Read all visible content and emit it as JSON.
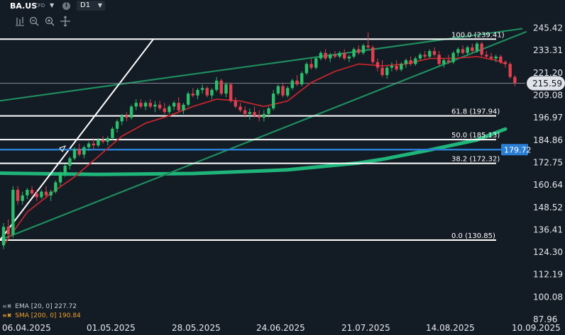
{
  "header": {
    "symbol": "BA.US",
    "symbol_suffix": "CFD",
    "symbol_dropdown_icon": "caret-down-icon",
    "info_icon_label": "i",
    "timeframe": "D1",
    "timeframe_dropdown_icon": "caret-down-icon"
  },
  "toolbar": {
    "icons": [
      "bars-settings-icon",
      "zoom-out-icon",
      "zoom-in-icon",
      "crosshair-move-icon"
    ]
  },
  "legend": {
    "ema_label": "EMA [20, 0] 227.72",
    "ema_color": "#c9d0d8",
    "sma_label": "SMA [200, 0] 190.84",
    "sma_color": "#f0a030"
  },
  "colors": {
    "background": "#131b24",
    "up_candle": "#2bbf6a",
    "down_candle": "#e04050",
    "ema_line": "#c0262c",
    "sma_line": "#1fb57a",
    "channel_lines": "#1e8c5e",
    "fib_lines": "#ffffff",
    "hline_blue": "#2a7fd4",
    "price_tag_bg": "#dfe4ea"
  },
  "chart_data": {
    "type": "candlestick",
    "y_axis": {
      "ylim": [
        87.96,
        254.8
      ],
      "ticks": [
        "245.42",
        "233.31",
        "221.20",
        "209.08",
        "196.97",
        "184.86",
        "172.75",
        "160.64",
        "148.52",
        "136.41",
        "124.30",
        "112.19",
        "100.08",
        "87.96"
      ]
    },
    "x_axis": {
      "ticks": [
        "06.04.2025",
        "01.05.2025",
        "28.05.2025",
        "24.06.2025",
        "21.07.2025",
        "14.08.2025",
        "10.09.2025"
      ]
    },
    "current_price": "215.59",
    "horizontal_line_price": "179.72",
    "fibonacci_levels": [
      {
        "label": "100.0 (239.41)",
        "value": 239.41
      },
      {
        "label": "61.8 (197.94)",
        "value": 197.94
      },
      {
        "label": "50.0 (185.13)",
        "value": 185.13
      },
      {
        "label": "38.2 (172.32)",
        "value": 172.32
      },
      {
        "label": "0.0 (130.85)",
        "value": 130.85
      }
    ],
    "candles": [
      {
        "date": "07.04",
        "o": 128,
        "h": 140,
        "l": 126,
        "c": 138
      },
      {
        "date": "08.04",
        "o": 138,
        "h": 142,
        "l": 132,
        "c": 134
      },
      {
        "date": "09.04",
        "o": 134,
        "h": 160,
        "l": 132,
        "c": 158
      },
      {
        "date": "10.04",
        "o": 158,
        "h": 160,
        "l": 150,
        "c": 152
      },
      {
        "date": "11.04",
        "o": 152,
        "h": 157,
        "l": 150,
        "c": 155
      },
      {
        "date": "14.04",
        "o": 155,
        "h": 159,
        "l": 153,
        "c": 158
      },
      {
        "date": "15.04",
        "o": 158,
        "h": 160,
        "l": 155,
        "c": 156
      },
      {
        "date": "16.04",
        "o": 156,
        "h": 158,
        "l": 152,
        "c": 154
      },
      {
        "date": "17.04",
        "o": 154,
        "h": 158,
        "l": 153,
        "c": 157
      },
      {
        "date": "18.04",
        "o": 157,
        "h": 160,
        "l": 154,
        "c": 155
      },
      {
        "date": "21.04",
        "o": 155,
        "h": 158,
        "l": 152,
        "c": 157
      },
      {
        "date": "22.04",
        "o": 157,
        "h": 163,
        "l": 156,
        "c": 162
      },
      {
        "date": "23.04",
        "o": 162,
        "h": 168,
        "l": 160,
        "c": 167
      },
      {
        "date": "24.04",
        "o": 167,
        "h": 172,
        "l": 165,
        "c": 171
      },
      {
        "date": "25.04",
        "o": 171,
        "h": 176,
        "l": 169,
        "c": 175
      },
      {
        "date": "28.04",
        "o": 175,
        "h": 181,
        "l": 174,
        "c": 180
      },
      {
        "date": "29.04",
        "o": 180,
        "h": 183,
        "l": 176,
        "c": 177
      },
      {
        "date": "30.04",
        "o": 177,
        "h": 182,
        "l": 175,
        "c": 181
      },
      {
        "date": "01.05",
        "o": 181,
        "h": 184,
        "l": 179,
        "c": 183
      },
      {
        "date": "02.05",
        "o": 183,
        "h": 186,
        "l": 180,
        "c": 182
      },
      {
        "date": "05.05",
        "o": 182,
        "h": 186,
        "l": 181,
        "c": 185
      },
      {
        "date": "06.05",
        "o": 185,
        "h": 187,
        "l": 183,
        "c": 184
      },
      {
        "date": "07.05",
        "o": 184,
        "h": 187,
        "l": 182,
        "c": 186
      },
      {
        "date": "08.05",
        "o": 186,
        "h": 192,
        "l": 185,
        "c": 191
      },
      {
        "date": "09.05",
        "o": 191,
        "h": 196,
        "l": 189,
        "c": 195
      },
      {
        "date": "12.05",
        "o": 195,
        "h": 199,
        "l": 193,
        "c": 198
      },
      {
        "date": "13.05",
        "o": 198,
        "h": 200,
        "l": 195,
        "c": 197
      },
      {
        "date": "14.05",
        "o": 197,
        "h": 204,
        "l": 196,
        "c": 203
      },
      {
        "date": "15.05",
        "o": 203,
        "h": 207,
        "l": 201,
        "c": 205
      },
      {
        "date": "16.05",
        "o": 205,
        "h": 207,
        "l": 202,
        "c": 203
      },
      {
        "date": "19.05",
        "o": 203,
        "h": 206,
        "l": 201,
        "c": 205
      },
      {
        "date": "20.05",
        "o": 205,
        "h": 207,
        "l": 202,
        "c": 203
      },
      {
        "date": "21.05",
        "o": 203,
        "h": 206,
        "l": 200,
        "c": 204
      },
      {
        "date": "22.05",
        "o": 204,
        "h": 206,
        "l": 201,
        "c": 202
      },
      {
        "date": "23.05",
        "o": 202,
        "h": 205,
        "l": 199,
        "c": 200
      },
      {
        "date": "26.05",
        "o": 200,
        "h": 204,
        "l": 199,
        "c": 203
      },
      {
        "date": "27.05",
        "o": 203,
        "h": 206,
        "l": 201,
        "c": 205
      },
      {
        "date": "28.05",
        "o": 205,
        "h": 208,
        "l": 200,
        "c": 201
      },
      {
        "date": "29.05",
        "o": 201,
        "h": 205,
        "l": 199,
        "c": 204
      },
      {
        "date": "30.05",
        "o": 204,
        "h": 211,
        "l": 203,
        "c": 210
      },
      {
        "date": "02.06",
        "o": 210,
        "h": 213,
        "l": 208,
        "c": 209
      },
      {
        "date": "03.06",
        "o": 209,
        "h": 213,
        "l": 207,
        "c": 212
      },
      {
        "date": "04.06",
        "o": 212,
        "h": 215,
        "l": 210,
        "c": 213
      },
      {
        "date": "05.06",
        "o": 213,
        "h": 214,
        "l": 208,
        "c": 209
      },
      {
        "date": "06.06",
        "o": 209,
        "h": 213,
        "l": 207,
        "c": 212
      },
      {
        "date": "09.06",
        "o": 212,
        "h": 219,
        "l": 211,
        "c": 217
      },
      {
        "date": "10.06",
        "o": 217,
        "h": 218,
        "l": 209,
        "c": 210
      },
      {
        "date": "11.06",
        "o": 210,
        "h": 216,
        "l": 208,
        "c": 215
      },
      {
        "date": "12.06",
        "o": 215,
        "h": 216,
        "l": 205,
        "c": 206
      },
      {
        "date": "13.06",
        "o": 206,
        "h": 208,
        "l": 202,
        "c": 203
      },
      {
        "date": "16.06",
        "o": 203,
        "h": 205,
        "l": 200,
        "c": 201
      },
      {
        "date": "17.06",
        "o": 201,
        "h": 203,
        "l": 197,
        "c": 199
      },
      {
        "date": "18.06",
        "o": 199,
        "h": 202,
        "l": 196,
        "c": 200
      },
      {
        "date": "19.06",
        "o": 200,
        "h": 203,
        "l": 197,
        "c": 198
      },
      {
        "date": "20.06",
        "o": 198,
        "h": 201,
        "l": 195,
        "c": 197
      },
      {
        "date": "23.06",
        "o": 197,
        "h": 201,
        "l": 195,
        "c": 199
      },
      {
        "date": "24.06",
        "o": 199,
        "h": 203,
        "l": 197,
        "c": 202
      },
      {
        "date": "25.06",
        "o": 202,
        "h": 212,
        "l": 201,
        "c": 210
      },
      {
        "date": "26.06",
        "o": 210,
        "h": 215,
        "l": 209,
        "c": 214
      },
      {
        "date": "27.06",
        "o": 214,
        "h": 216,
        "l": 208,
        "c": 209
      },
      {
        "date": "30.06",
        "o": 209,
        "h": 214,
        "l": 208,
        "c": 213
      },
      {
        "date": "01.07",
        "o": 213,
        "h": 218,
        "l": 212,
        "c": 217
      },
      {
        "date": "02.07",
        "o": 217,
        "h": 220,
        "l": 214,
        "c": 215
      },
      {
        "date": "03.07",
        "o": 215,
        "h": 222,
        "l": 214,
        "c": 221
      },
      {
        "date": "07.07",
        "o": 221,
        "h": 227,
        "l": 220,
        "c": 226
      },
      {
        "date": "08.07",
        "o": 226,
        "h": 229,
        "l": 223,
        "c": 224
      },
      {
        "date": "09.07",
        "o": 224,
        "h": 230,
        "l": 223,
        "c": 229
      },
      {
        "date": "10.07",
        "o": 229,
        "h": 233,
        "l": 228,
        "c": 232
      },
      {
        "date": "11.07",
        "o": 232,
        "h": 234,
        "l": 228,
        "c": 229
      },
      {
        "date": "14.07",
        "o": 229,
        "h": 232,
        "l": 227,
        "c": 231
      },
      {
        "date": "15.07",
        "o": 231,
        "h": 233,
        "l": 229,
        "c": 230
      },
      {
        "date": "16.07",
        "o": 230,
        "h": 233,
        "l": 229,
        "c": 232
      },
      {
        "date": "17.07",
        "o": 232,
        "h": 234,
        "l": 228,
        "c": 229
      },
      {
        "date": "18.07",
        "o": 229,
        "h": 231,
        "l": 227,
        "c": 230
      },
      {
        "date": "21.07",
        "o": 230,
        "h": 235,
        "l": 229,
        "c": 234
      },
      {
        "date": "22.07",
        "o": 234,
        "h": 236,
        "l": 231,
        "c": 232
      },
      {
        "date": "23.07",
        "o": 232,
        "h": 237,
        "l": 231,
        "c": 236
      },
      {
        "date": "24.07",
        "o": 236,
        "h": 243,
        "l": 234,
        "c": 235
      },
      {
        "date": "25.07",
        "o": 235,
        "h": 236,
        "l": 226,
        "c": 227
      },
      {
        "date": "28.07",
        "o": 227,
        "h": 229,
        "l": 222,
        "c": 224
      },
      {
        "date": "29.07",
        "o": 224,
        "h": 228,
        "l": 219,
        "c": 220
      },
      {
        "date": "30.07",
        "o": 220,
        "h": 225,
        "l": 218,
        "c": 224
      },
      {
        "date": "31.07",
        "o": 224,
        "h": 227,
        "l": 222,
        "c": 225
      },
      {
        "date": "01.08",
        "o": 225,
        "h": 228,
        "l": 222,
        "c": 223
      },
      {
        "date": "04.08",
        "o": 223,
        "h": 227,
        "l": 222,
        "c": 226
      },
      {
        "date": "05.08",
        "o": 226,
        "h": 229,
        "l": 224,
        "c": 228
      },
      {
        "date": "06.08",
        "o": 228,
        "h": 230,
        "l": 225,
        "c": 226
      },
      {
        "date": "07.08",
        "o": 226,
        "h": 230,
        "l": 225,
        "c": 229
      },
      {
        "date": "08.08",
        "o": 229,
        "h": 232,
        "l": 228,
        "c": 231
      },
      {
        "date": "11.08",
        "o": 231,
        "h": 233,
        "l": 229,
        "c": 230
      },
      {
        "date": "12.08",
        "o": 230,
        "h": 234,
        "l": 229,
        "c": 233
      },
      {
        "date": "13.08",
        "o": 233,
        "h": 235,
        "l": 230,
        "c": 231
      },
      {
        "date": "14.08",
        "o": 231,
        "h": 233,
        "l": 225,
        "c": 226
      },
      {
        "date": "15.08",
        "o": 226,
        "h": 229,
        "l": 224,
        "c": 228
      },
      {
        "date": "18.08",
        "o": 228,
        "h": 231,
        "l": 226,
        "c": 227
      },
      {
        "date": "19.08",
        "o": 227,
        "h": 233,
        "l": 226,
        "c": 232
      },
      {
        "date": "20.08",
        "o": 232,
        "h": 235,
        "l": 230,
        "c": 234
      },
      {
        "date": "21.08",
        "o": 234,
        "h": 236,
        "l": 231,
        "c": 232
      },
      {
        "date": "22.08",
        "o": 232,
        "h": 236,
        "l": 231,
        "c": 235
      },
      {
        "date": "25.08",
        "o": 235,
        "h": 237,
        "l": 232,
        "c": 233
      },
      {
        "date": "26.08",
        "o": 233,
        "h": 238,
        "l": 232,
        "c": 237
      },
      {
        "date": "27.08",
        "o": 237,
        "h": 238,
        "l": 230,
        "c": 231
      },
      {
        "date": "28.08",
        "o": 231,
        "h": 233,
        "l": 229,
        "c": 230
      },
      {
        "date": "29.08",
        "o": 230,
        "h": 232,
        "l": 228,
        "c": 229
      },
      {
        "date": "01.09",
        "o": 229,
        "h": 231,
        "l": 227,
        "c": 230
      },
      {
        "date": "02.09",
        "o": 230,
        "h": 231,
        "l": 226,
        "c": 227
      },
      {
        "date": "03.09",
        "o": 227,
        "h": 228,
        "l": 224,
        "c": 226
      },
      {
        "date": "04.09",
        "o": 226,
        "h": 227,
        "l": 218,
        "c": 219
      },
      {
        "date": "05.09",
        "o": 219,
        "h": 220,
        "l": 214,
        "c": 215.59
      }
    ],
    "ema_20": [
      [
        0,
        128
      ],
      [
        5,
        146
      ],
      [
        10,
        156
      ],
      [
        15,
        165
      ],
      [
        20,
        176
      ],
      [
        25,
        187
      ],
      [
        30,
        194
      ],
      [
        35,
        198
      ],
      [
        40,
        203
      ],
      [
        45,
        207
      ],
      [
        50,
        206
      ],
      [
        55,
        203
      ],
      [
        60,
        206
      ],
      [
        65,
        216
      ],
      [
        70,
        222
      ],
      [
        75,
        226
      ],
      [
        80,
        225
      ],
      [
        85,
        226
      ],
      [
        90,
        229
      ],
      [
        95,
        229
      ],
      [
        100,
        230
      ],
      [
        104,
        228
      ],
      [
        106,
        226
      ]
    ],
    "sma_200": [
      [
        -1,
        167
      ],
      [
        20,
        166.3
      ],
      [
        40,
        166.8
      ],
      [
        60,
        168.8
      ],
      [
        75,
        172.5
      ],
      [
        80,
        174.5
      ],
      [
        90,
        179.5
      ],
      [
        100,
        185
      ],
      [
        106,
        190.84
      ]
    ]
  }
}
